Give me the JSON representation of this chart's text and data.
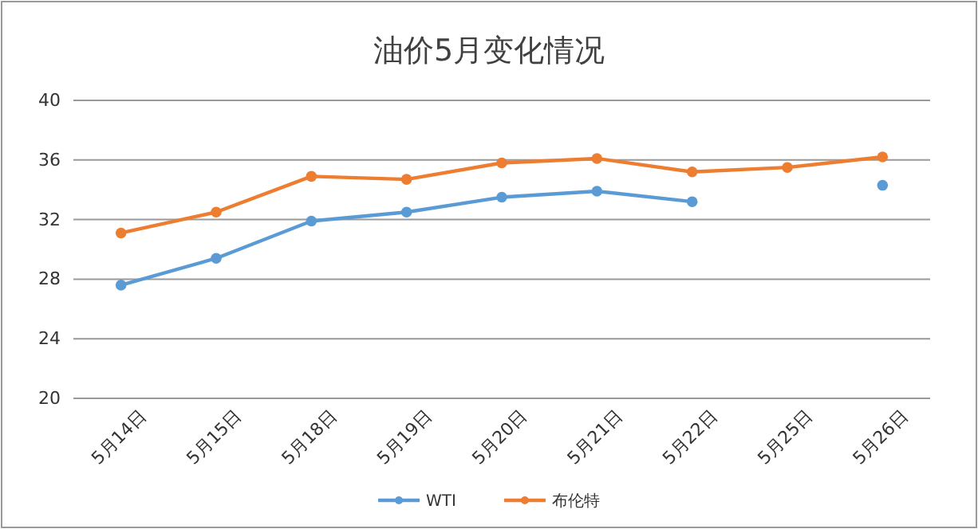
{
  "chart_data": {
    "type": "line",
    "title": "油价5月变化情况",
    "categories": [
      "5月14日",
      "5月15日",
      "5月18日",
      "5月19日",
      "5月20日",
      "5月21日",
      "5月22日",
      "5月25日",
      "5月26日"
    ],
    "series": [
      {
        "name": "WTI",
        "color": "#5b9bd5",
        "values": [
          27.6,
          29.4,
          31.9,
          32.5,
          33.5,
          33.9,
          33.2,
          null,
          34.3
        ]
      },
      {
        "name": "布伦特",
        "color": "#ed7d31",
        "values": [
          31.1,
          32.5,
          34.9,
          34.7,
          35.8,
          36.1,
          35.2,
          35.5,
          36.2
        ]
      }
    ],
    "ylim": [
      20,
      40
    ],
    "yticks": [
      20,
      24,
      28,
      32,
      36,
      40
    ],
    "grid": "y",
    "legend": "bottom",
    "marker": "circle",
    "line_style": "solid"
  }
}
